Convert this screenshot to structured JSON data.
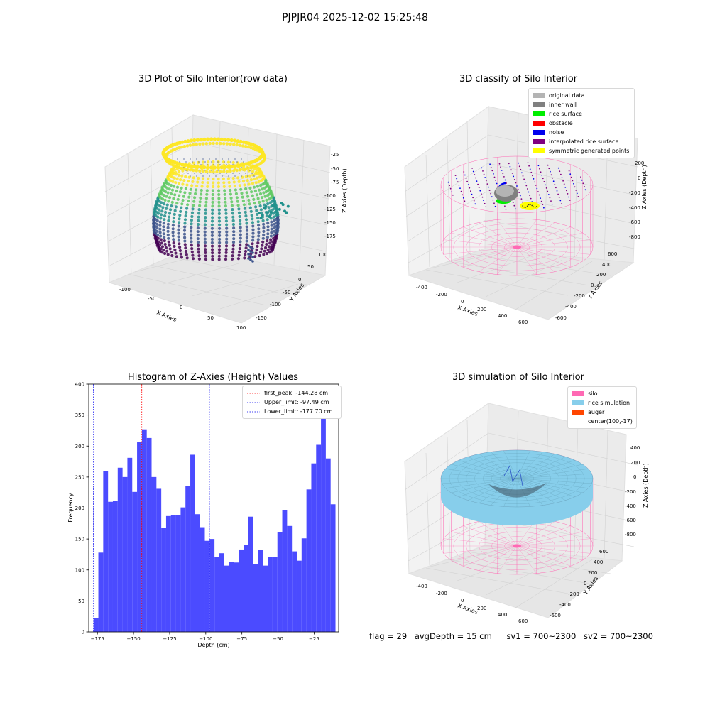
{
  "suptitle": "PJPJR04 2025-12-02 15:25:48",
  "panel_raw": {
    "title": "3D Plot of Silo Interior(row data)",
    "xlabel": "X Axies",
    "ylabel": "Y Axies",
    "zlabel": "Z Axies (Depth)",
    "x_ticks": [
      "-100",
      "-50",
      "0",
      "50",
      "100"
    ],
    "y_ticks": [
      "100",
      "50",
      "0",
      "-50",
      "-100",
      "-150"
    ],
    "z_ticks": [
      "-25",
      "-50",
      "-75",
      "-100",
      "-125",
      "-150",
      "-175"
    ],
    "colormap": [
      "#440154",
      "#3b528b",
      "#21918c",
      "#5ec962",
      "#fde725"
    ]
  },
  "panel_classify": {
    "title": "3D classify of Silo Interior",
    "xlabel": "X Axies",
    "ylabel": "Y Axies",
    "zlabel": "Z Axies (Depth)",
    "x_ticks": [
      "-400",
      "-200",
      "0",
      "200",
      "400",
      "600"
    ],
    "y_ticks": [
      "600",
      "400",
      "200",
      "0",
      "-200",
      "-400",
      "-600"
    ],
    "z_ticks": [
      "200",
      "0",
      "-200",
      "-400",
      "-600",
      "-800"
    ],
    "legend": [
      {
        "label": "original data",
        "color": "#b4b4b4"
      },
      {
        "label": "inner wall",
        "color": "#808080"
      },
      {
        "label": "rice surface",
        "color": "#00ee00"
      },
      {
        "label": "obstacle",
        "color": "#ff0000"
      },
      {
        "label": "noise",
        "color": "#0000ee"
      },
      {
        "label": "interpolated rice surface",
        "color": "#800080"
      },
      {
        "label": "symmetric generated points",
        "color": "#ffff00"
      }
    ]
  },
  "panel_sim": {
    "title": "3D simulation of Silo Interior",
    "xlabel": "X Axies",
    "ylabel": "Y Axies",
    "zlabel": "Z Axies (Depth)",
    "x_ticks": [
      "-400",
      "-200",
      "0",
      "200",
      "400",
      "600"
    ],
    "y_ticks": [
      "600",
      "400",
      "200",
      "0",
      "-200",
      "-400",
      "-600"
    ],
    "z_ticks": [
      "400",
      "200",
      "0",
      "-200",
      "-400",
      "-600",
      "-800"
    ],
    "legend": [
      {
        "label": "silo",
        "color": "#ff69b4"
      },
      {
        "label": "rice simulation",
        "color": "#87ceeb"
      },
      {
        "label": "auger",
        "color": "#ff4500"
      },
      {
        "label": "center(100,-17)",
        "color": ""
      }
    ]
  },
  "status": {
    "flag": "flag = 29",
    "avg_depth": "avgDepth = 15 cm",
    "sv1": "sv1 = 700~2300",
    "sv2": "sv2 = 700~2300"
  },
  "colors": {
    "silo_pink": "#ff69b4",
    "rice_blue": "#87ceeb",
    "hist_blue": "#4b4bff"
  },
  "chart_data": {
    "type": "bar",
    "title": "Histogram of Z-Axies (Height) Values",
    "xlabel": "Depth (cm)",
    "ylabel": "Frequency",
    "xlim": [
      -181,
      -8
    ],
    "ylim": [
      0,
      400
    ],
    "x_ticks": [
      -175,
      -150,
      -125,
      -100,
      -75,
      -50,
      -25
    ],
    "y_ticks": [
      0,
      50,
      100,
      150,
      200,
      250,
      300,
      350,
      400
    ],
    "bin_start": -177.7,
    "bin_width": 3.35,
    "values": [
      22,
      128,
      260,
      210,
      211,
      265,
      250,
      281,
      226,
      306,
      327,
      313,
      250,
      231,
      168,
      187,
      188,
      188,
      201,
      236,
      286,
      190,
      169,
      147,
      150,
      121,
      127,
      107,
      113,
      112,
      133,
      140,
      186,
      110,
      132,
      107,
      121,
      121,
      161,
      196,
      171,
      130,
      115,
      151,
      230,
      272,
      302,
      378,
      280,
      206
    ],
    "bar_color": "#4b4bff",
    "vlines": [
      {
        "label": "first_peak: -144.28 cm",
        "x": -144.28,
        "color": "#ff0000"
      },
      {
        "label": "Upper_limit: -97.49 cm",
        "x": -97.49,
        "color": "#0000ee"
      },
      {
        "label": "Lower_limit: -177.70 cm",
        "x": -177.7,
        "color": "#0000ee"
      }
    ],
    "legend_position": "top-right"
  }
}
